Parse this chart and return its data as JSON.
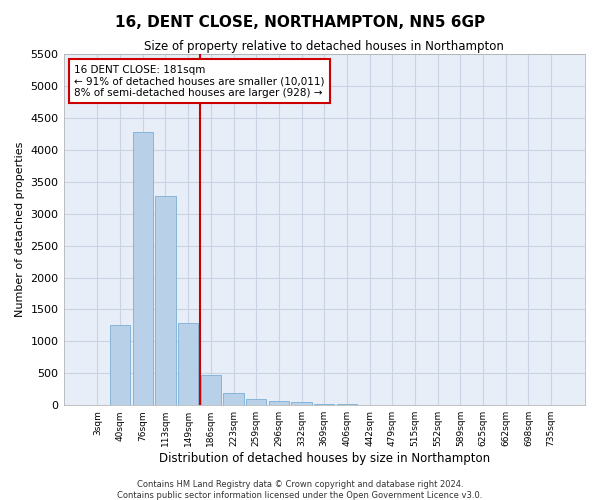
{
  "title1": "16, DENT CLOSE, NORTHAMPTON, NN5 6GP",
  "title2": "Size of property relative to detached houses in Northampton",
  "xlabel": "Distribution of detached houses by size in Northampton",
  "ylabel": "Number of detached properties",
  "footer1": "Contains HM Land Registry data © Crown copyright and database right 2024.",
  "footer2": "Contains public sector information licensed under the Open Government Licence v3.0.",
  "annotation_line1": "16 DENT CLOSE: 181sqm",
  "annotation_line2": "← 91% of detached houses are smaller (10,011)",
  "annotation_line3": "8% of semi-detached houses are larger (928) →",
  "vline_index": 5,
  "bar_color": "#b8d0e8",
  "bar_edge_color": "#7aafd4",
  "vline_color": "#cc0000",
  "annotation_box_edgecolor": "#cc0000",
  "grid_color": "#c8d4e4",
  "bg_color": "#e8eef8",
  "categories": [
    "3sqm",
    "40sqm",
    "76sqm",
    "113sqm",
    "149sqm",
    "186sqm",
    "223sqm",
    "259sqm",
    "296sqm",
    "332sqm",
    "369sqm",
    "406sqm",
    "442sqm",
    "479sqm",
    "515sqm",
    "552sqm",
    "589sqm",
    "625sqm",
    "662sqm",
    "698sqm",
    "735sqm"
  ],
  "values": [
    0,
    1260,
    4280,
    3270,
    1290,
    480,
    195,
    100,
    70,
    45,
    25,
    15,
    8,
    5,
    3,
    2,
    1,
    1,
    1,
    1,
    0
  ],
  "ylim": [
    0,
    5500
  ],
  "yticks": [
    0,
    500,
    1000,
    1500,
    2000,
    2500,
    3000,
    3500,
    4000,
    4500,
    5000,
    5500
  ]
}
